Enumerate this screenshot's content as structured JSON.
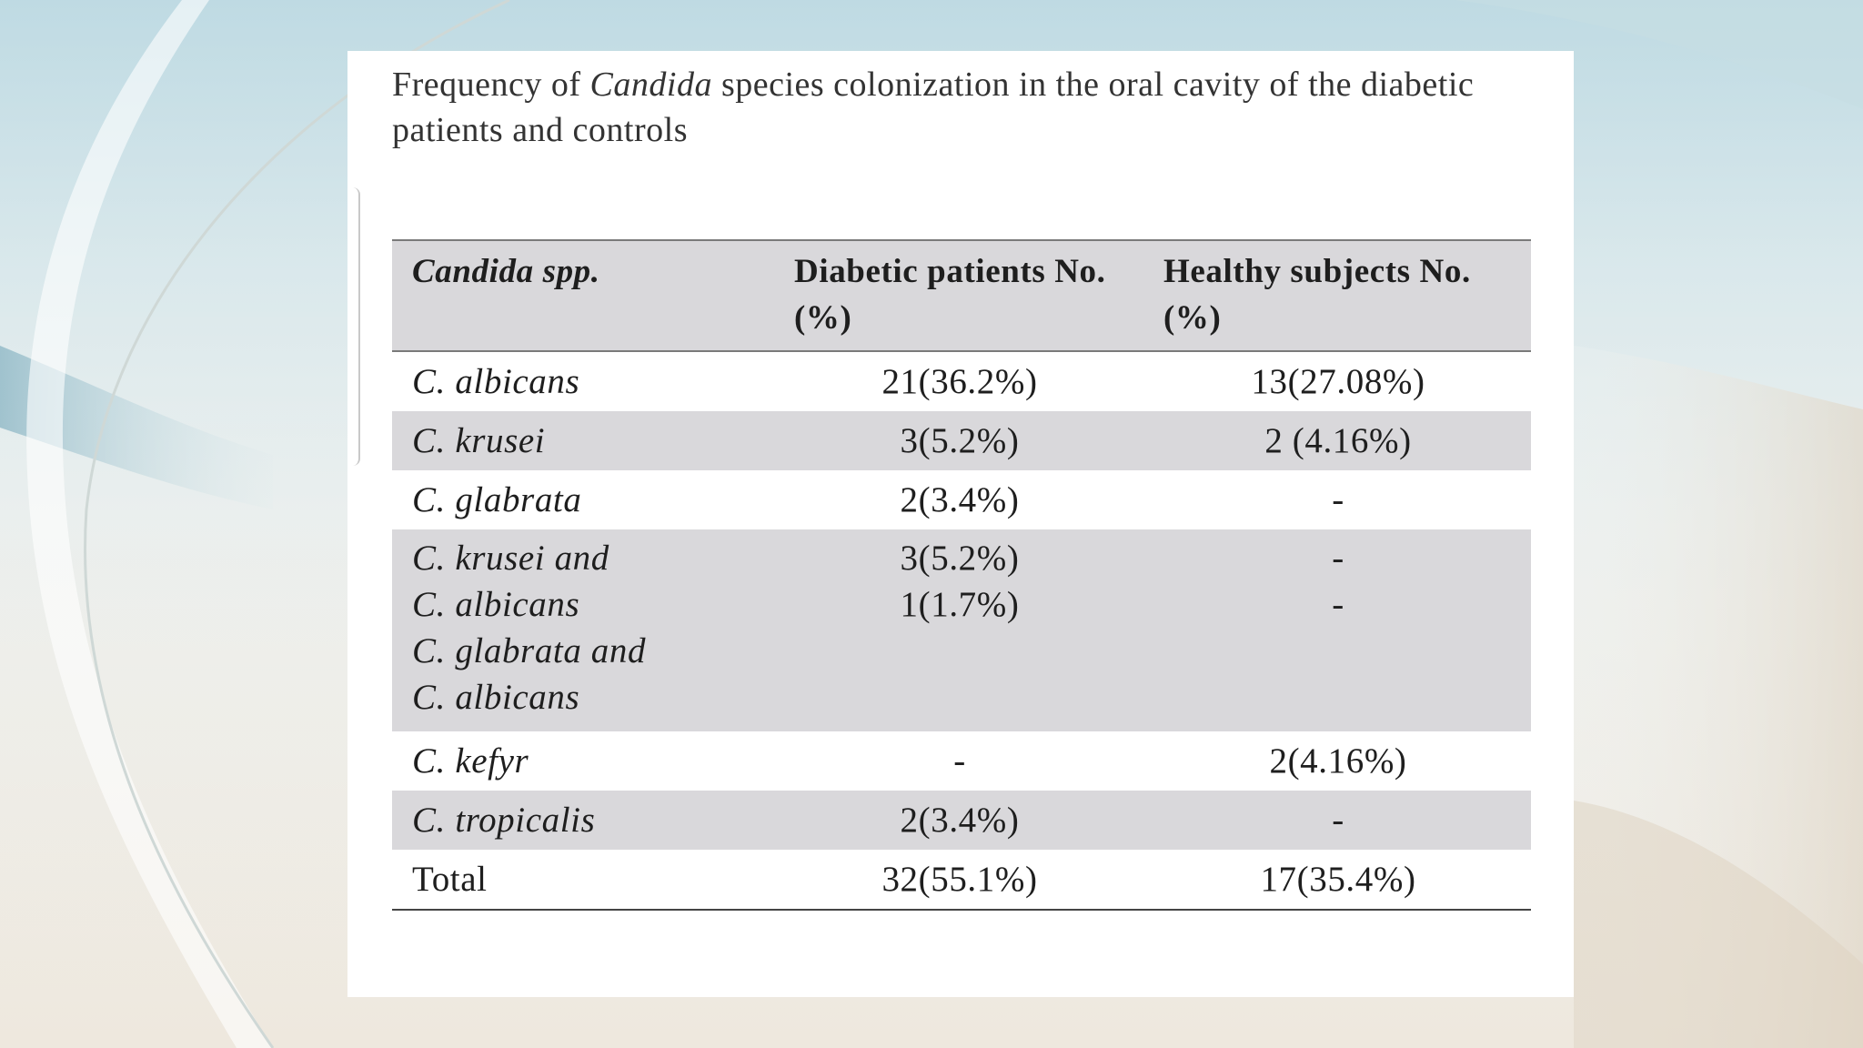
{
  "title": {
    "prefix": "Frequency of ",
    "italic": "Candida",
    "suffix": " species colonization in the oral cavity of the diabetic patients and controls"
  },
  "table": {
    "headers": [
      "Candida spp.",
      "Diabetic patients No. (%)",
      "Healthy subjects No.(%)"
    ],
    "rows": [
      {
        "species": [
          "C. albicans"
        ],
        "diabetic": [
          "21(36.2%)"
        ],
        "healthy": [
          "13(27.08%)"
        ]
      },
      {
        "species": [
          "C. krusei"
        ],
        "diabetic": [
          "3(5.2%)"
        ],
        "healthy": [
          "2 (4.16%)"
        ]
      },
      {
        "species": [
          "C. glabrata"
        ],
        "diabetic": [
          "2(3.4%)"
        ],
        "healthy": [
          "-"
        ]
      },
      {
        "species": [
          "C. krusei and",
          "C. albicans",
          "C. glabrata and",
          "C. albicans"
        ],
        "diabetic": [
          "3(5.2%)",
          "1(1.7%)"
        ],
        "healthy": [
          "-",
          "-"
        ]
      },
      {
        "species": [
          "C. kefyr"
        ],
        "diabetic": [
          "-"
        ],
        "healthy": [
          "2(4.16%)"
        ]
      },
      {
        "species": [
          "C. tropicalis"
        ],
        "diabetic": [
          "2(3.4%)"
        ],
        "healthy": [
          "-"
        ]
      }
    ],
    "total": {
      "label": "Total",
      "diabetic": "32(55.1%)",
      "healthy": "17(35.4%)"
    }
  }
}
